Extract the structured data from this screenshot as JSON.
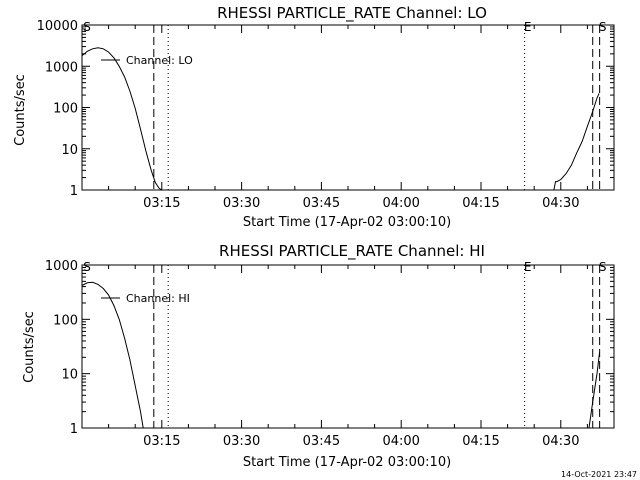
{
  "footer": {
    "timestamp": "14-Oct-2021 23:47"
  },
  "chart_data": [
    {
      "type": "line",
      "title": "RHESSI PARTICLE_RATE Channel: LO",
      "xlabel": "Start Time (17-Apr-02 03:00:10)",
      "ylabel": "Counts/sec",
      "yscale": "log",
      "ylim": [
        1,
        10000
      ],
      "xlim_minutes": [
        0,
        100
      ],
      "xticks": [
        {
          "t": 15,
          "label": "03:15"
        },
        {
          "t": 30,
          "label": "03:30"
        },
        {
          "t": 45,
          "label": "03:45"
        },
        {
          "t": 60,
          "label": "04:00"
        },
        {
          "t": 75,
          "label": "04:15"
        },
        {
          "t": 90,
          "label": "04:30"
        }
      ],
      "yticks": [
        {
          "v": 1,
          "label": "1"
        },
        {
          "v": 10,
          "label": "10"
        },
        {
          "v": 100,
          "label": "100"
        },
        {
          "v": 1000,
          "label": "1000"
        },
        {
          "v": 10000,
          "label": "10000"
        }
      ],
      "legend": {
        "label": "Channel: LO",
        "position": "top-left"
      },
      "markers": [
        {
          "t": 0,
          "label": "S",
          "style": "none"
        },
        {
          "t": 13.5,
          "label": "",
          "style": "dashed"
        },
        {
          "t": 16.2,
          "label": "",
          "style": "dotted"
        },
        {
          "t": 83.2,
          "label": "E",
          "style": "dotted"
        },
        {
          "t": 96.0,
          "label": "",
          "style": "dashed"
        },
        {
          "t": 97.3,
          "label": "S",
          "style": "dashed"
        }
      ],
      "series": [
        {
          "name": "Channel: LO",
          "segments": [
            [
              [
                0,
                1800
              ],
              [
                1,
                2300
              ],
              [
                2,
                2650
              ],
              [
                3,
                2800
              ],
              [
                4,
                2650
              ],
              [
                5,
                2200
              ],
              [
                6,
                1600
              ],
              [
                7,
                1000
              ],
              [
                8,
                550
              ],
              [
                9,
                250
              ],
              [
                10,
                95
              ],
              [
                11,
                30
              ],
              [
                12,
                9
              ],
              [
                13,
                3
              ],
              [
                13.8,
                1.5
              ],
              [
                14.5,
                1.1
              ],
              [
                15,
                1
              ]
            ],
            [
              [
                88.7,
                1
              ],
              [
                89,
                1.6
              ],
              [
                89.3,
                1.6
              ],
              [
                90,
                1.8
              ],
              [
                91,
                2.5
              ],
              [
                92,
                4
              ],
              [
                93,
                8
              ],
              [
                94,
                15
              ],
              [
                95,
                35
              ],
              [
                96,
                80
              ],
              [
                96.8,
                170
              ],
              [
                97.2,
                220
              ]
            ]
          ]
        }
      ]
    },
    {
      "type": "line",
      "title": "RHESSI PARTICLE_RATE Channel: HI",
      "xlabel": "Start Time (17-Apr-02 03:00:10)",
      "ylabel": "Counts/sec",
      "yscale": "log",
      "ylim": [
        1,
        1000
      ],
      "xlim_minutes": [
        0,
        100
      ],
      "xticks": [
        {
          "t": 15,
          "label": "03:15"
        },
        {
          "t": 30,
          "label": "03:30"
        },
        {
          "t": 45,
          "label": "03:45"
        },
        {
          "t": 60,
          "label": "04:00"
        },
        {
          "t": 75,
          "label": "04:15"
        },
        {
          "t": 90,
          "label": "04:30"
        }
      ],
      "yticks": [
        {
          "v": 1,
          "label": "1"
        },
        {
          "v": 10,
          "label": "10"
        },
        {
          "v": 100,
          "label": "100"
        },
        {
          "v": 1000,
          "label": "1000"
        }
      ],
      "legend": {
        "label": "Channel: HI",
        "position": "top-left"
      },
      "markers": [
        {
          "t": 0,
          "label": "S",
          "style": "none"
        },
        {
          "t": 13.5,
          "label": "",
          "style": "dashed"
        },
        {
          "t": 16.2,
          "label": "",
          "style": "dotted"
        },
        {
          "t": 83.2,
          "label": "E",
          "style": "dotted"
        },
        {
          "t": 96.0,
          "label": "",
          "style": "dashed"
        },
        {
          "t": 97.3,
          "label": "S",
          "style": "dashed"
        }
      ],
      "series": [
        {
          "name": "Channel: HI",
          "segments": [
            [
              [
                0,
                420
              ],
              [
                1,
                470
              ],
              [
                2,
                480
              ],
              [
                3,
                440
              ],
              [
                4,
                370
              ],
              [
                5,
                280
              ],
              [
                6,
                180
              ],
              [
                7,
                100
              ],
              [
                8,
                45
              ],
              [
                9,
                18
              ],
              [
                10,
                6
              ],
              [
                11,
                2
              ],
              [
                11.5,
                1
              ]
            ],
            [
              [
                95.3,
                1
              ],
              [
                96,
                3
              ],
              [
                96.8,
                10
              ],
              [
                97.3,
                25
              ]
            ]
          ]
        }
      ]
    }
  ]
}
